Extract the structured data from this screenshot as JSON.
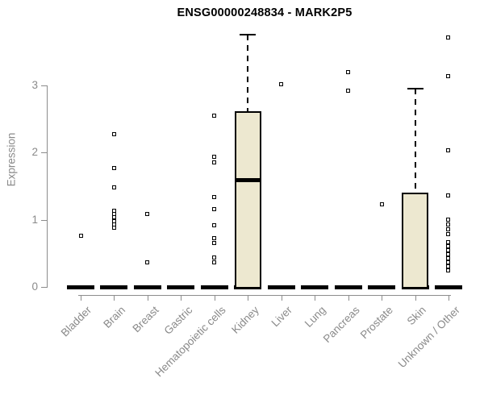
{
  "chart_data": {
    "type": "boxplot",
    "title": "ENSG00000248834 - MARK2P5",
    "xlabel": "",
    "ylabel": "Expression",
    "yticks": [
      0,
      1,
      2,
      3
    ],
    "ylim": [
      0,
      3.9
    ],
    "grid": false,
    "legend": null,
    "categories": [
      "Bladder",
      "Brain",
      "Breast",
      "Gastric",
      "Hematopoietic cells",
      "Kidney",
      "Liver",
      "Lung",
      "Pancreas",
      "Prostate",
      "Skin",
      "Unknown / Other"
    ],
    "boxes": [
      {
        "category": "Bladder",
        "whisker_low": 0,
        "q1": 0,
        "median": 0,
        "q3": 0,
        "whisker_high": 0,
        "outliers": [
          0.76
        ]
      },
      {
        "category": "Brain",
        "whisker_low": 0,
        "q1": 0,
        "median": 0,
        "q3": 0,
        "whisker_high": 0,
        "outliers": [
          2.27,
          1.77,
          1.48,
          1.13,
          1.08,
          1.03,
          0.98,
          0.93,
          0.88
        ]
      },
      {
        "category": "Breast",
        "whisker_low": 0,
        "q1": 0,
        "median": 0,
        "q3": 0,
        "whisker_high": 0,
        "outliers": [
          1.08,
          0.37
        ]
      },
      {
        "category": "Gastric",
        "whisker_low": 0,
        "q1": 0,
        "median": 0,
        "q3": 0,
        "whisker_high": 0,
        "outliers": []
      },
      {
        "category": "Hematopoietic cells",
        "whisker_low": 0,
        "q1": 0,
        "median": 0,
        "q3": 0,
        "whisker_high": 0,
        "outliers": [
          2.55,
          1.93,
          1.85,
          1.34,
          1.16,
          0.92,
          0.73,
          0.65,
          0.44,
          0.36
        ]
      },
      {
        "category": "Kidney",
        "whisker_low": 0,
        "q1": 0,
        "median": 1.59,
        "q3": 2.61,
        "whisker_high": 3.75,
        "outliers": []
      },
      {
        "category": "Liver",
        "whisker_low": 0,
        "q1": 0,
        "median": 0,
        "q3": 0,
        "whisker_high": 0,
        "outliers": [
          3.01
        ]
      },
      {
        "category": "Lung",
        "whisker_low": 0,
        "q1": 0,
        "median": 0,
        "q3": 0,
        "whisker_high": 0,
        "outliers": []
      },
      {
        "category": "Pancreas",
        "whisker_low": 0,
        "q1": 0,
        "median": 0,
        "q3": 0,
        "whisker_high": 0,
        "outliers": [
          3.19,
          2.92
        ]
      },
      {
        "category": "Prostate",
        "whisker_low": 0,
        "q1": 0,
        "median": 0,
        "q3": 0,
        "whisker_high": 0,
        "outliers": [
          1.23
        ]
      },
      {
        "category": "Skin",
        "whisker_low": 0,
        "q1": 0,
        "median": 0,
        "q3": 1.4,
        "whisker_high": 2.95,
        "outliers": []
      },
      {
        "category": "Unknown / Other",
        "whisker_low": 0,
        "q1": 0,
        "median": 0,
        "q3": 0,
        "whisker_high": 0,
        "outliers": [
          3.71,
          3.13,
          2.03,
          1.36,
          1.0,
          0.93,
          0.86,
          0.79,
          0.66,
          0.6,
          0.54,
          0.48,
          0.42,
          0.36,
          0.3,
          0.24
        ]
      }
    ],
    "colors": {
      "box_fill": "#EDE8D0",
      "box_border": "#000000",
      "median": "#000000",
      "outlier_border": "#000000",
      "axis_line": "#8C8C8C",
      "axis_text": "#8A8A8A",
      "title_text": "#000000",
      "background": "#FFFFFF"
    }
  }
}
